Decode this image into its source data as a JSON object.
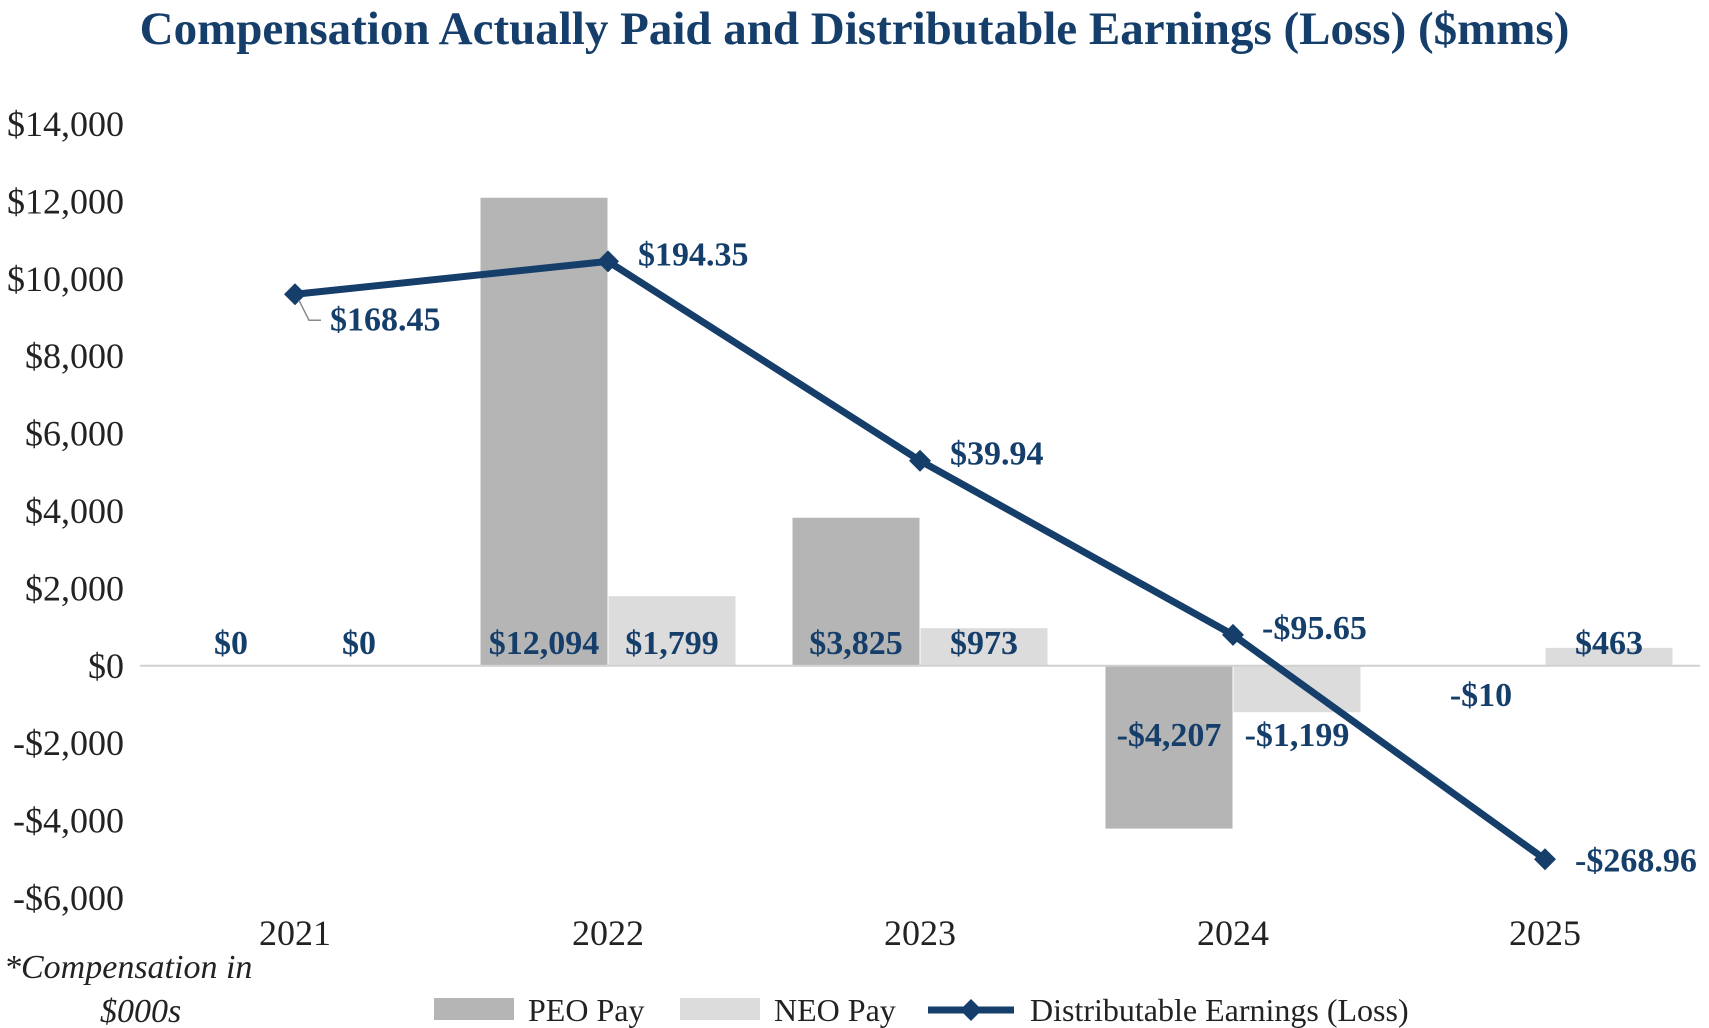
{
  "chart_data": {
    "type": "bar+line",
    "title": "Compensation Actually Paid and Distributable Earnings (Loss) ($mms)",
    "categories": [
      "2021",
      "2022",
      "2023",
      "2024",
      "2025"
    ],
    "ylim": [
      -6000,
      14000
    ],
    "yticks": [
      14000,
      12000,
      10000,
      8000,
      6000,
      4000,
      2000,
      0,
      -2000,
      -4000,
      -6000
    ],
    "ytick_labels": [
      "$14,000",
      "$12,000",
      "$10,000",
      "$8,000",
      "$6,000",
      "$4,000",
      "$2,000",
      "$0",
      "-$2,000",
      "-$4,000",
      "-$6,000"
    ],
    "grid": false,
    "series": [
      {
        "name": "PEO Pay",
        "type": "bar",
        "color": "#b5b5b5",
        "values": [
          0,
          12094,
          3825,
          -4207,
          -10
        ],
        "labels": [
          "$0",
          "$12,094",
          "$3,825",
          "-$4,207",
          "-$10"
        ]
      },
      {
        "name": "NEO Pay",
        "type": "bar",
        "color": "#dcdcdc",
        "values": [
          0,
          1799,
          973,
          -1199,
          463
        ],
        "labels": [
          "$0",
          "$1,799",
          "$973",
          "-$1,199",
          "$463"
        ]
      },
      {
        "name": "Distributable Earnings (Loss)",
        "type": "line",
        "color": "#153e6a",
        "values": [
          168.45,
          194.35,
          39.94,
          -95.65,
          -268.96
        ],
        "plotted_left_axis_values": [
          9600,
          10450,
          5300,
          800,
          -5000
        ],
        "labels": [
          "$168.45",
          "$194.35",
          "$39.94",
          "-$95.65",
          "-$268.96"
        ]
      }
    ],
    "footnote": [
      "*Compensation in",
      "$000s"
    ],
    "legend_position": "bottom"
  }
}
